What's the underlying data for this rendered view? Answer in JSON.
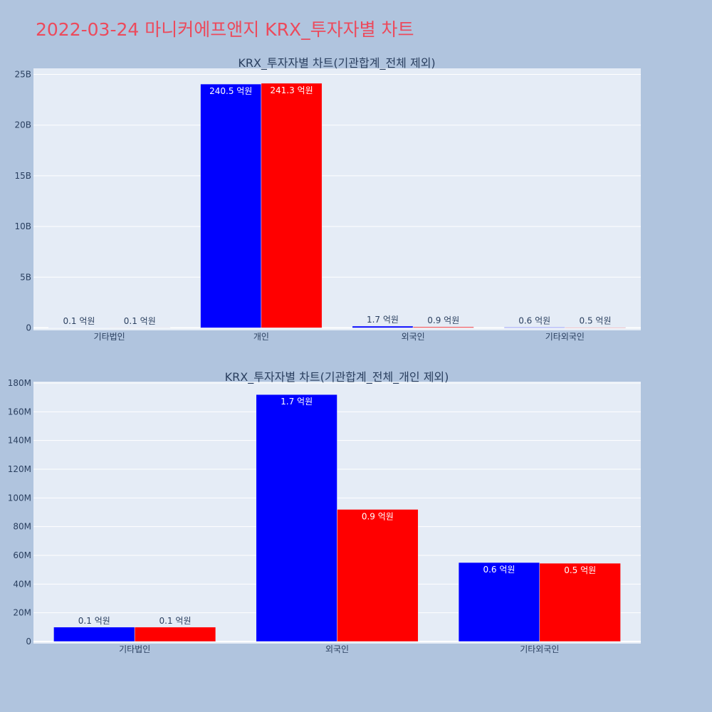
{
  "page": {
    "title": "2022-03-24 마니커에프앤지 KRX_투자자별 차트"
  },
  "colors": {
    "series1": "#0000ff",
    "series2": "#ff0000",
    "background": "#b0c4de",
    "plot_bg": "#e5ecf6",
    "title": "#ec4a5c"
  },
  "chart_data": [
    {
      "type": "bar",
      "title": "KRX_투자자별 차트(기관합계_전체 제외)",
      "categories": [
        "기타법인",
        "개인",
        "외국인",
        "기타외국인"
      ],
      "series": [
        {
          "values": [
            10000000,
            24050000000,
            170000000,
            60000000
          ],
          "labels": [
            "0.1 억원",
            "240.5 억원",
            "1.7 억원",
            "0.6 억원"
          ],
          "color": "#0000ff"
        },
        {
          "values": [
            10000000,
            24130000000,
            90000000,
            50000000
          ],
          "labels": [
            "0.1 억원",
            "241.3 억원",
            "0.9 억원",
            "0.5 억원"
          ],
          "color": "#ff0000"
        }
      ],
      "ylim": [
        -250000000,
        25600000000
      ],
      "yticks": [
        0,
        5000000000,
        10000000000,
        15000000000,
        20000000000,
        25000000000
      ],
      "ytick_labels": [
        "0",
        "5B",
        "10B",
        "15B",
        "20B",
        "25B"
      ],
      "grid": true
    },
    {
      "type": "bar",
      "title": "KRX_투자자별 차트(기관합계_전체_개인 제외)",
      "categories": [
        "기타법인",
        "외국인",
        "기타외국인"
      ],
      "series": [
        {
          "values": [
            10000000,
            172000000,
            55000000
          ],
          "labels": [
            "0.1 억원",
            "1.7 억원",
            "0.6 억원"
          ],
          "color": "#0000ff"
        },
        {
          "values": [
            10000000,
            92000000,
            54500000
          ],
          "labels": [
            "0.1 억원",
            "0.9 억원",
            "0.5 억원"
          ],
          "color": "#ff0000"
        }
      ],
      "ylim": [
        -1500000,
        181000000
      ],
      "yticks": [
        0,
        20000000,
        40000000,
        60000000,
        80000000,
        100000000,
        120000000,
        140000000,
        160000000,
        180000000
      ],
      "ytick_labels": [
        "0",
        "20M",
        "40M",
        "60M",
        "80M",
        "100M",
        "120M",
        "140M",
        "160M",
        "180M"
      ],
      "grid": true
    }
  ]
}
